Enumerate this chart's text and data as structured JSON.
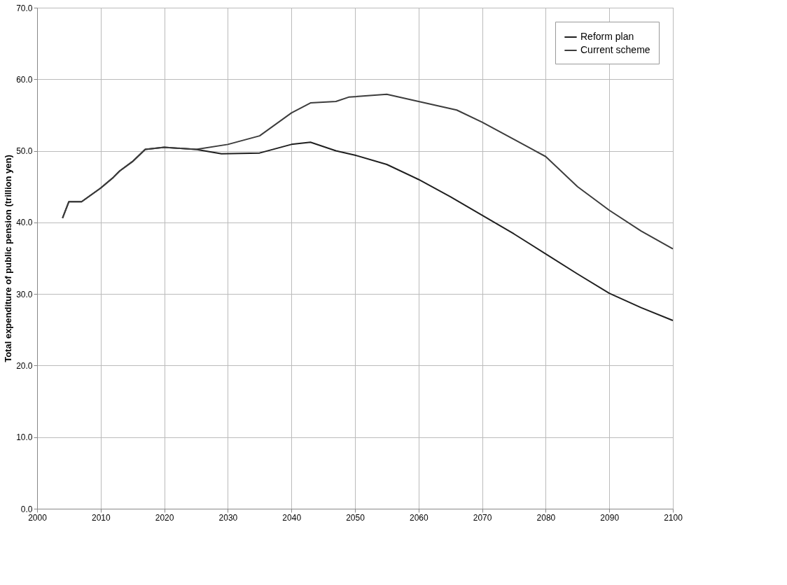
{
  "chart_data": {
    "type": "line",
    "ylabel": "Total expenditure of public pension (trillion yen)",
    "xlim": [
      2000,
      2100
    ],
    "xticks": [
      2000,
      2010,
      2020,
      2030,
      2040,
      2050,
      2060,
      2070,
      2080,
      2090,
      2100
    ],
    "ylim": [
      0,
      70
    ],
    "yticks": [
      {
        "value": 0,
        "label": "0.0"
      },
      {
        "value": 10,
        "label": "10.0"
      },
      {
        "value": 20,
        "label": "20.0"
      },
      {
        "value": 30,
        "label": "30.0"
      },
      {
        "value": 40,
        "label": "40.0"
      },
      {
        "value": 50,
        "label": "50.0"
      },
      {
        "value": 60,
        "label": "60.0"
      },
      {
        "value": 70,
        "label": "70.0"
      }
    ],
    "grid": true,
    "legend": "top right",
    "marker": "none",
    "line_style": "solid",
    "series": [
      {
        "name": "Reform plan",
        "color": "#1f1f1f",
        "x": [
          2004,
          2005,
          2007,
          2010,
          2012,
          2013,
          2015,
          2017,
          2020,
          2025,
          2029,
          2035,
          2040,
          2043,
          2047,
          2050,
          2055,
          2060,
          2065,
          2070,
          2075,
          2080,
          2085,
          2090,
          2095,
          2100
        ],
        "values": [
          40.6,
          42.9,
          42.9,
          44.8,
          46.3,
          47.2,
          48.5,
          50.2,
          50.5,
          50.2,
          49.6,
          49.7,
          50.9,
          51.2,
          50.0,
          49.4,
          48.1,
          46.0,
          43.6,
          41.0,
          38.4,
          35.6,
          32.8,
          30.1,
          28.1,
          26.3
        ]
      },
      {
        "name": "Current scheme",
        "color": "#3c3c3c",
        "x": [
          2004,
          2005,
          2007,
          2010,
          2012,
          2013,
          2015,
          2017,
          2020,
          2025,
          2030,
          2035,
          2040,
          2043,
          2047,
          2049,
          2055,
          2060,
          2066,
          2070,
          2075,
          2080,
          2085,
          2090,
          2095,
          2100
        ],
        "values": [
          40.6,
          42.9,
          42.9,
          44.8,
          46.3,
          47.2,
          48.5,
          50.2,
          50.5,
          50.2,
          50.9,
          52.1,
          55.3,
          56.7,
          56.9,
          57.5,
          57.9,
          56.9,
          55.7,
          54.0,
          51.6,
          49.2,
          45.0,
          41.7,
          38.8,
          36.3
        ]
      }
    ]
  }
}
